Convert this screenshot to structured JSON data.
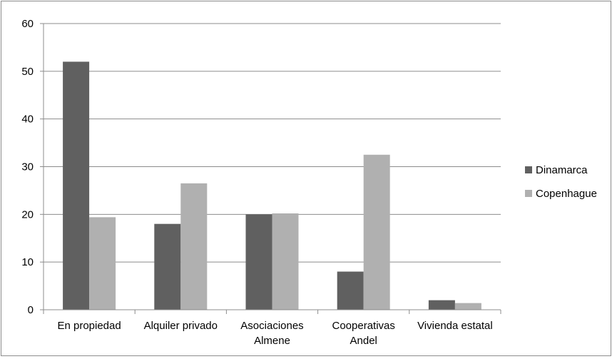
{
  "chart_data": {
    "type": "bar",
    "categories": [
      [
        "En propiedad"
      ],
      [
        "Alquiler privado"
      ],
      [
        "Asociaciones",
        "Almene"
      ],
      [
        "Cooperativas",
        "Andel"
      ],
      [
        "Vivienda estatal"
      ]
    ],
    "series": [
      {
        "name": "Dinamarca",
        "color": "#606060",
        "values": [
          52,
          18,
          20,
          8,
          2
        ]
      },
      {
        "name": "Copenhague",
        "color": "#b0b0b0",
        "values": [
          19.4,
          26.5,
          20.2,
          32.5,
          1.4
        ]
      }
    ],
    "title": "",
    "xlabel": "",
    "ylabel": "",
    "ylim": [
      0,
      60
    ],
    "yticks": [
      "0",
      "10",
      "20",
      "30",
      "40",
      "50",
      "60"
    ],
    "grid": true,
    "legend_position": "right",
    "colors": {
      "grid": "#8c8c8c",
      "axis": "#8c8c8c"
    }
  }
}
